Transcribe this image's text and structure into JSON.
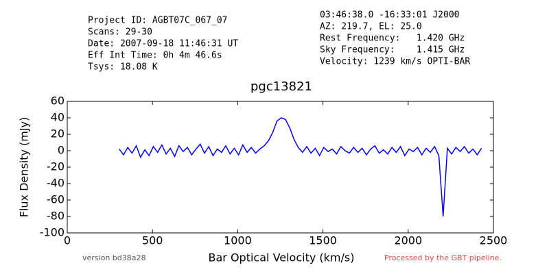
{
  "chart_data": {
    "type": "line",
    "title": "pgc13821",
    "xlabel": "Bar Optical Velocity (km/s)",
    "ylabel": "Flux Density (mJy)",
    "header_left": [
      "Project ID: AGBT07C_067_07",
      "Scans: 29-30",
      "Date: 2007-09-18 11:46:31 UT",
      "Eff Int Time: 0h 4m 46.6s",
      "Tsys: 18.08 K"
    ],
    "header_right": [
      "03:46:38.0 -16:33:01 J2000",
      "AZ: 219.7, EL: 25.0",
      "Rest Frequency:   1.420 GHz",
      "Sky Frequency:    1.415 GHz",
      "Velocity: 1239 km/s OPTI-BAR"
    ],
    "footer_left": "version bd38a28",
    "footer_right": "Processed by the GBT pipeline.",
    "xlim": [
      0,
      2500
    ],
    "xticks": [
      0,
      500,
      1000,
      1500,
      2000,
      2500
    ],
    "ylim": [
      -100,
      60
    ],
    "yticks": [
      -100,
      -80,
      -60,
      -40,
      -20,
      0,
      20,
      40,
      60
    ],
    "color": "#0000ff",
    "x": [
      305,
      330,
      355,
      380,
      405,
      430,
      455,
      480,
      505,
      530,
      555,
      580,
      605,
      630,
      655,
      680,
      705,
      730,
      755,
      780,
      805,
      830,
      855,
      880,
      905,
      930,
      955,
      980,
      1005,
      1030,
      1055,
      1080,
      1105,
      1130,
      1155,
      1180,
      1205,
      1230,
      1255,
      1280,
      1305,
      1330,
      1355,
      1380,
      1405,
      1430,
      1455,
      1480,
      1505,
      1530,
      1555,
      1580,
      1605,
      1630,
      1655,
      1680,
      1705,
      1730,
      1755,
      1780,
      1805,
      1830,
      1855,
      1880,
      1905,
      1930,
      1955,
      1980,
      2005,
      2030,
      2055,
      2080,
      2105,
      2130,
      2155,
      2180,
      2205,
      2230,
      2255,
      2280,
      2305,
      2330,
      2355,
      2380,
      2405,
      2430
    ],
    "values": [
      2,
      -5,
      4,
      -3,
      6,
      -8,
      1,
      -6,
      5,
      -2,
      7,
      -4,
      3,
      -7,
      6,
      -1,
      4,
      -5,
      2,
      8,
      -3,
      5,
      -6,
      2,
      -2,
      6,
      -4,
      3,
      -5,
      7,
      -2,
      4,
      -3,
      2,
      6,
      12,
      22,
      36,
      40,
      38,
      28,
      14,
      4,
      -2,
      5,
      -3,
      3,
      -6,
      4,
      -1,
      2,
      -4,
      5,
      0,
      -3,
      4,
      -2,
      3,
      -5,
      2,
      6,
      -3,
      1,
      -4,
      4,
      -2,
      5,
      -6,
      2,
      -1,
      4,
      -5,
      3,
      -2,
      5,
      -6,
      -80,
      3,
      -4,
      4,
      -1,
      5,
      -3,
      2,
      -5,
      3
    ]
  }
}
